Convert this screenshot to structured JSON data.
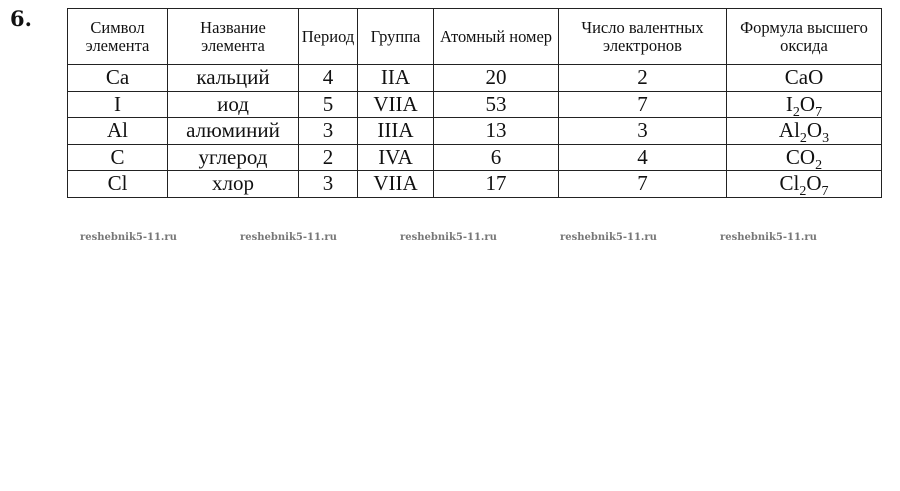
{
  "task_number": "6.",
  "table": {
    "headers": [
      "Символ элемента",
      "Название элемента",
      "Период",
      "Группа",
      "Атомный номер",
      "Число валентных электронов",
      "Формула высшего оксида"
    ],
    "rows": [
      {
        "symbol": "Ca",
        "name": "кальций",
        "period": "4",
        "group": "IIA",
        "atomic_number": "20",
        "valence_electrons": "2",
        "oxide": [
          [
            "Ca",
            ""
          ],
          [
            "O",
            ""
          ]
        ]
      },
      {
        "symbol": "I",
        "name": "иод",
        "period": "5",
        "group": "VIIA",
        "atomic_number": "53",
        "valence_electrons": "7",
        "oxide": [
          [
            "I",
            "2"
          ],
          [
            "O",
            "7"
          ]
        ]
      },
      {
        "symbol": "Al",
        "name": "алюминий",
        "period": "3",
        "group": "IIIA",
        "atomic_number": "13",
        "valence_electrons": "3",
        "oxide": [
          [
            "Al",
            "2"
          ],
          [
            "O",
            "3"
          ]
        ]
      },
      {
        "symbol": "C",
        "name": "углерод",
        "period": "2",
        "group": "IVA",
        "atomic_number": "6",
        "valence_electrons": "4",
        "oxide": [
          [
            "C",
            ""
          ],
          [
            "O",
            "2"
          ]
        ]
      },
      {
        "symbol": "Cl",
        "name": "хлор",
        "period": "3",
        "group": "VIIA",
        "atomic_number": "17",
        "valence_electrons": "7",
        "oxide": [
          [
            "Cl",
            "2"
          ],
          [
            "O",
            "7"
          ]
        ]
      }
    ]
  },
  "watermark": "reshebnik5-11.ru"
}
